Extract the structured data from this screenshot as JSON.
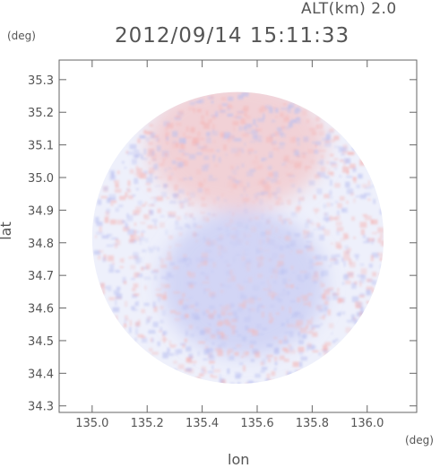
{
  "header": {
    "altitude_label": "ALT(km) 2.0",
    "timestamp": "2012/09/14 15:11:33"
  },
  "axes": {
    "y_unit": "(deg)",
    "x_unit": "(deg)"
  },
  "chart_data": {
    "type": "heatmap",
    "title": "2012/09/14 15:11:33",
    "subtitle": "ALT(km) 2.0",
    "xlabel": "lon",
    "ylabel": "lat",
    "xlim": [
      134.88,
      136.18
    ],
    "ylim": [
      34.28,
      35.36
    ],
    "x_ticks": [
      135.0,
      135.2,
      135.4,
      135.6,
      135.8,
      136.0
    ],
    "y_ticks": [
      34.3,
      34.4,
      34.5,
      34.6,
      34.7,
      34.8,
      34.9,
      35.0,
      35.1,
      35.2,
      35.3
    ],
    "x_tick_labels": [
      "135.0",
      "135.2",
      "135.4",
      "135.6",
      "135.8",
      "136.0"
    ],
    "y_tick_labels": [
      "34.3",
      "34.4",
      "34.5",
      "34.6",
      "34.7",
      "34.8",
      "34.9",
      "35.0",
      "35.1",
      "35.2",
      "35.3"
    ],
    "coverage": {
      "center_lon": 135.53,
      "center_lat": 34.815,
      "radius_deg": 0.53
    },
    "regions": [
      {
        "name": "northern positive (red) lobe",
        "lon": [
          135.2,
          135.85
        ],
        "lat": [
          34.9,
          35.3
        ],
        "sign": "positive"
      },
      {
        "name": "central negative (blue) lobe",
        "lon": [
          135.25,
          135.85
        ],
        "lat": [
          34.45,
          34.9
        ],
        "sign": "negative"
      }
    ],
    "colors": {
      "positive": "#f4b8b8",
      "negative": "#b9bff0",
      "neutral": "#eef0fb"
    },
    "grid": false,
    "legend": "none"
  }
}
